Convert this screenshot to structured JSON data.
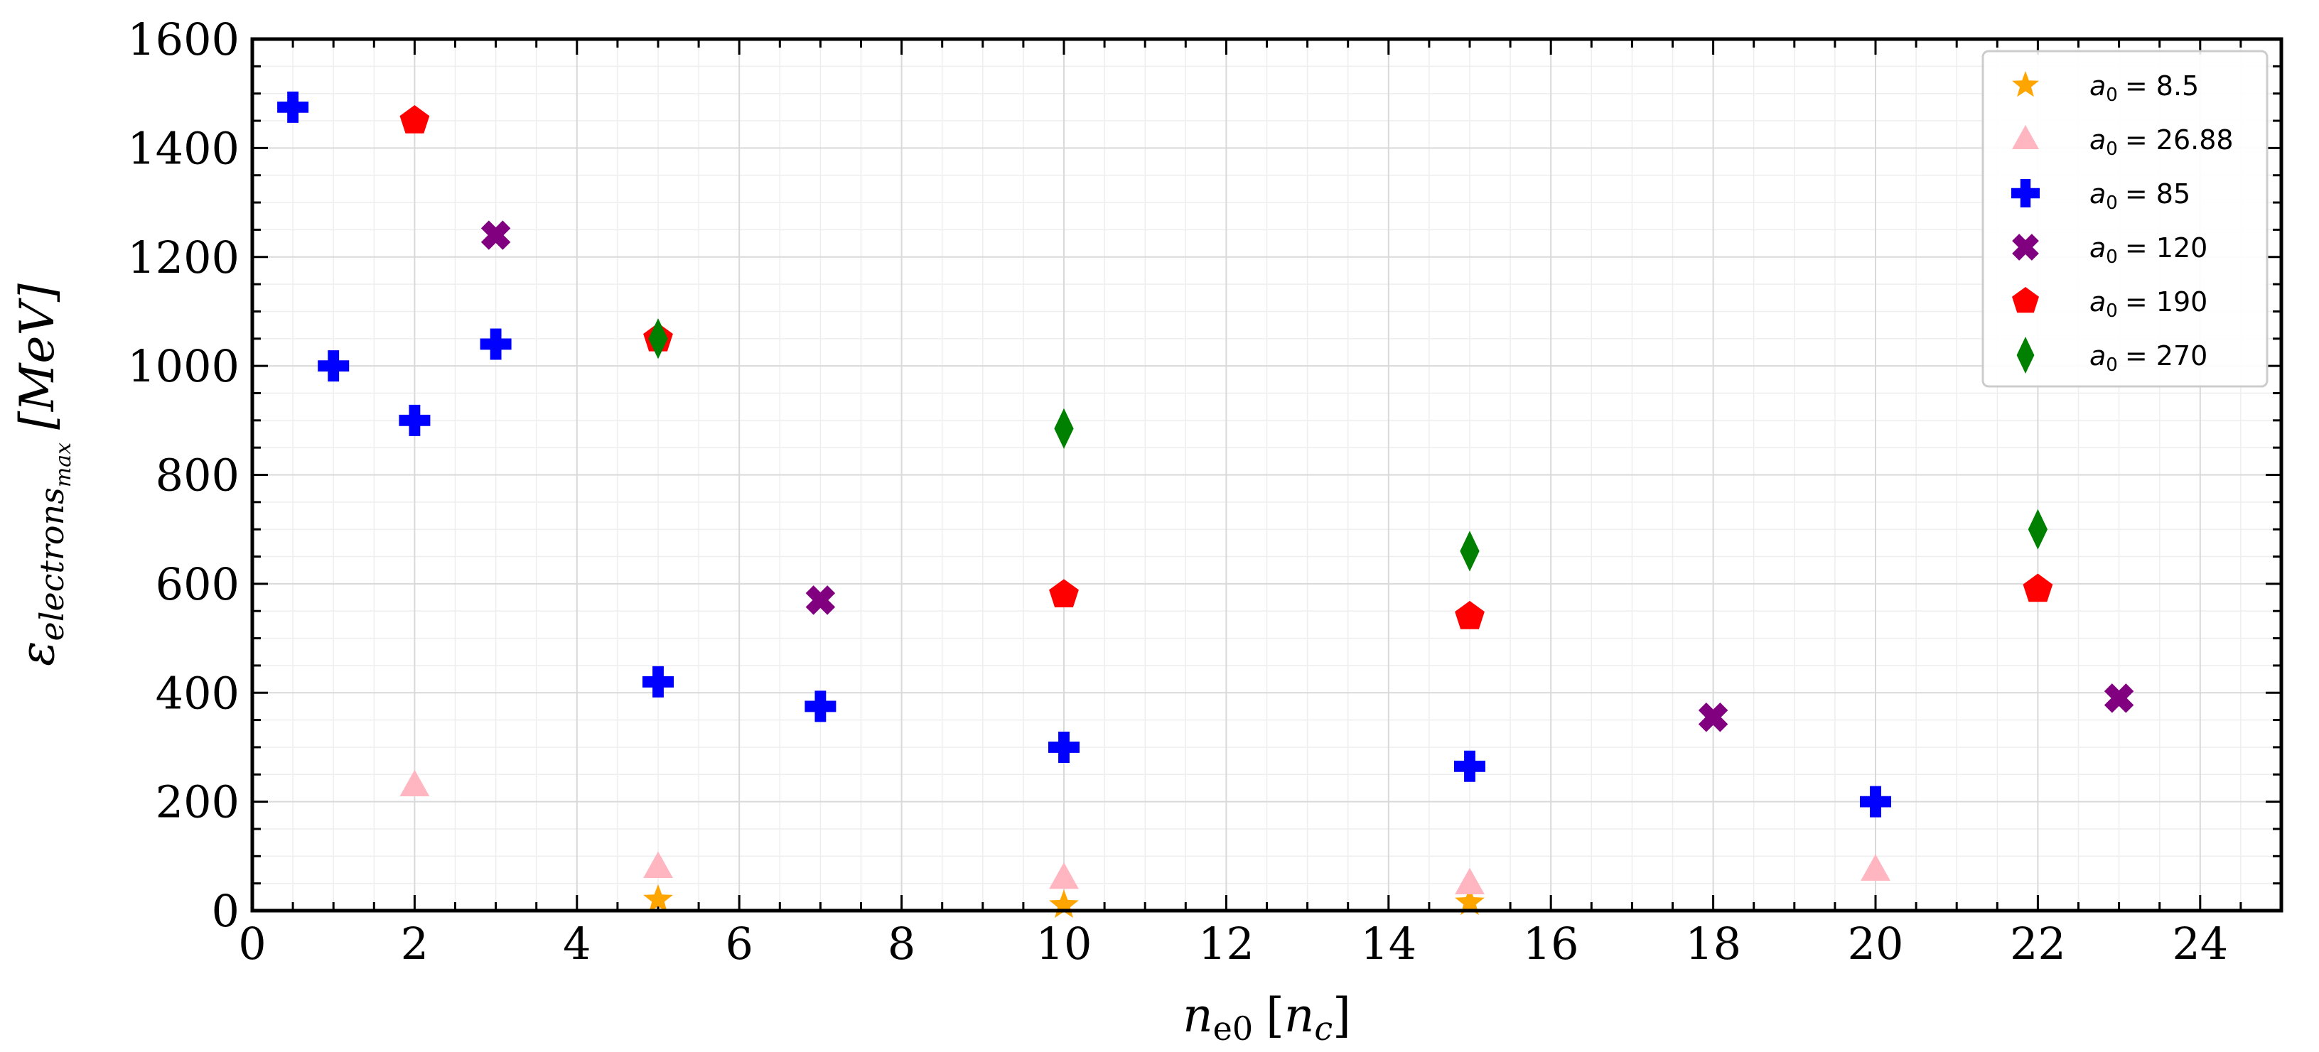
{
  "chart_data": {
    "type": "scatter",
    "title": "",
    "xlabel": "n_e0 [n_c]",
    "xlabel_parts": {
      "main": "n",
      "sub": "e0",
      "bracket_open": "[",
      "unit_main": "n",
      "unit_sub": "c",
      "bracket_close": "]"
    },
    "ylabel": "ε_electrons_max [MeV]",
    "ylabel_parts": {
      "main": "ε",
      "sub": "electrons",
      "subsub": "max",
      "unit": "[MeV]"
    },
    "xlim": [
      0,
      25
    ],
    "ylim": [
      0,
      1600
    ],
    "x_ticks": [
      0,
      2,
      4,
      6,
      8,
      10,
      12,
      14,
      16,
      18,
      20,
      22,
      24
    ],
    "y_ticks": [
      0,
      200,
      400,
      600,
      800,
      1000,
      1200,
      1400,
      1600
    ],
    "grid": true,
    "legend_position": "top-right",
    "series": [
      {
        "name": "a0 = 8.5",
        "legend_prefix": "a",
        "legend_sub": "0",
        "legend_value": "= 8.5",
        "marker": "star",
        "color": "#FFA500",
        "x": [
          5,
          10,
          15
        ],
        "y": [
          20,
          10,
          15
        ]
      },
      {
        "name": "a0 = 26.88",
        "legend_prefix": "a",
        "legend_sub": "0",
        "legend_value": "= 26.88",
        "marker": "triangle",
        "color": "#FFB6C1",
        "x": [
          2,
          5,
          10,
          15,
          20
        ],
        "y": [
          230,
          80,
          60,
          50,
          75
        ]
      },
      {
        "name": "a0 = 85",
        "legend_prefix": "a",
        "legend_sub": "0",
        "legend_value": "= 85",
        "marker": "plus",
        "color": "#0000FF",
        "x": [
          0.5,
          1,
          2,
          3,
          5,
          7,
          10,
          15,
          20
        ],
        "y": [
          1475,
          1000,
          900,
          1040,
          420,
          375,
          300,
          265,
          200
        ]
      },
      {
        "name": "a0 = 120",
        "legend_prefix": "a",
        "legend_sub": "0",
        "legend_value": "= 120",
        "marker": "x",
        "color": "#800080",
        "x": [
          3,
          7,
          18,
          23
        ],
        "y": [
          1240,
          570,
          355,
          390
        ]
      },
      {
        "name": "a0 = 190",
        "legend_prefix": "a",
        "legend_sub": "0",
        "legend_value": "= 190",
        "marker": "pentagon",
        "color": "#FF0000",
        "x": [
          2,
          5,
          10,
          15,
          22
        ],
        "y": [
          1450,
          1050,
          580,
          540,
          590
        ]
      },
      {
        "name": "a0 = 270",
        "legend_prefix": "a",
        "legend_sub": "0",
        "legend_value": "= 270",
        "marker": "diamond",
        "color": "#008000",
        "x": [
          5,
          10,
          15,
          22
        ],
        "y": [
          1050,
          885,
          660,
          700
        ]
      }
    ]
  }
}
